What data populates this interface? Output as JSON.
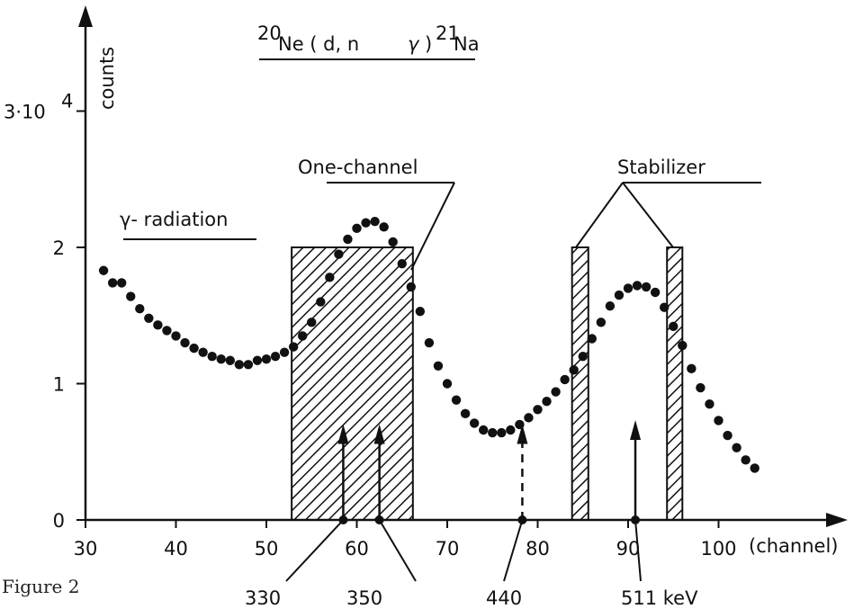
{
  "figure_caption": "Figure 2",
  "chart_data": {
    "type": "scatter",
    "title": {
      "pre": "20",
      "main": "Ne ( d, n",
      "gamma": "γ",
      "close": ")",
      "sup": "21",
      "post": "Na"
    },
    "xlabel": "(channel)",
    "ylabel": "counts",
    "xlim": [
      30,
      106
    ],
    "ylim": [
      0,
      3
    ],
    "x_ticks": [
      {
        "value": 30,
        "label": "30"
      },
      {
        "value": 40,
        "label": "40"
      },
      {
        "value": 50,
        "label": "50"
      },
      {
        "value": 60,
        "label": "60"
      },
      {
        "value": 70,
        "label": "70"
      },
      {
        "value": 80,
        "label": "80"
      },
      {
        "value": 90,
        "label": "90"
      },
      {
        "value": 100,
        "label": "100"
      }
    ],
    "y_ticks": [
      {
        "value": 0,
        "label": "0"
      },
      {
        "value": 1,
        "label": "1"
      },
      {
        "value": 2,
        "label": "2"
      },
      {
        "value": 3,
        "label": "3·10",
        "sup": "4"
      }
    ],
    "grid": false,
    "series": [
      {
        "x": [
          32,
          33,
          34,
          35,
          36,
          37,
          38,
          39,
          40,
          41,
          42,
          43,
          44,
          45,
          46,
          47,
          48,
          49,
          50,
          51,
          52,
          53,
          54,
          55,
          56,
          57,
          58,
          59,
          60,
          61,
          62,
          63,
          64,
          65,
          66,
          67,
          68,
          69,
          70,
          71,
          72,
          73,
          74,
          75,
          76,
          77,
          78,
          79,
          80,
          81,
          82,
          83,
          84,
          85,
          86,
          87,
          88,
          89,
          90,
          91,
          92,
          93,
          94,
          95,
          96,
          97,
          98,
          99,
          100,
          101,
          102,
          103,
          104
        ],
        "y": [
          1.83,
          1.74,
          1.74,
          1.64,
          1.55,
          1.48,
          1.43,
          1.39,
          1.35,
          1.3,
          1.26,
          1.23,
          1.2,
          1.18,
          1.17,
          1.14,
          1.14,
          1.17,
          1.18,
          1.2,
          1.23,
          1.27,
          1.35,
          1.45,
          1.6,
          1.78,
          1.95,
          2.06,
          2.14,
          2.18,
          2.19,
          2.15,
          2.04,
          1.88,
          1.71,
          1.53,
          1.3,
          1.13,
          1.0,
          0.88,
          0.78,
          0.71,
          0.66,
          0.64,
          0.64,
          0.66,
          0.7,
          0.75,
          0.81,
          0.87,
          0.94,
          1.03,
          1.1,
          1.2,
          1.33,
          1.45,
          1.57,
          1.65,
          1.7,
          1.72,
          1.71,
          1.67,
          1.56,
          1.42,
          1.28,
          1.11,
          0.97,
          0.85,
          0.73,
          0.62,
          0.53,
          0.44,
          0.38
        ]
      }
    ],
    "windows": [
      {
        "name": "one-channel",
        "x": [
          52.8,
          66.2
        ],
        "y_top": 2.0
      },
      {
        "name": "stabilizer-low",
        "x": [
          83.8,
          85.6
        ],
        "y_top": 2.0
      },
      {
        "name": "stabilizer-high",
        "x": [
          94.3,
          96.0
        ],
        "y_top": 2.0
      }
    ],
    "gamma_lines": [
      {
        "channel": 58.5,
        "energy_label": "330",
        "height": 0.65,
        "dashed": false
      },
      {
        "channel": 62.5,
        "energy_label": "350",
        "height": 0.65,
        "dashed": false
      },
      {
        "channel": 78.3,
        "energy_label": "440",
        "height": 0.65,
        "dashed": true
      },
      {
        "channel": 90.8,
        "energy_label": "511 keV",
        "height": 0.68,
        "dashed": false
      }
    ],
    "annotations": {
      "gamma_radiation": "γ- radiation",
      "one_channel": "One-channel",
      "stabilizer": "Stabilizer"
    }
  }
}
